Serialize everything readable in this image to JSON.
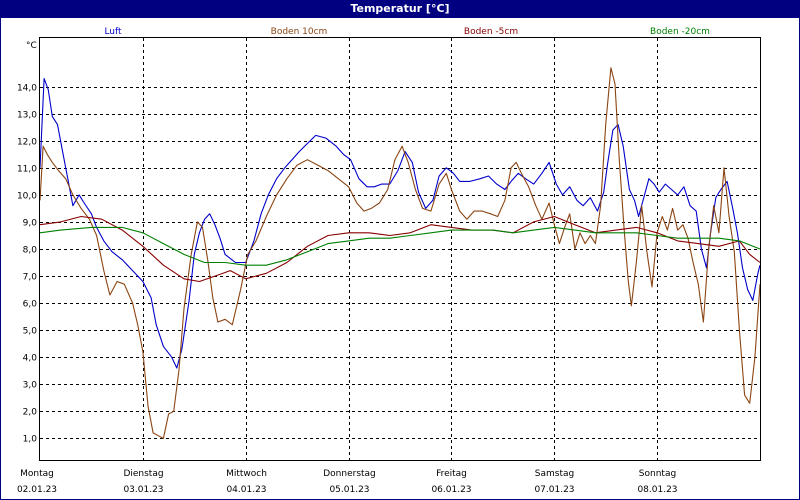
{
  "window": {
    "title": "Temperatur [°C]"
  },
  "chart_data": {
    "type": "line",
    "title": "Temperatur [°C]",
    "ylabel": "°C",
    "xlabel": "",
    "ylim": [
      0.2,
      15.8
    ],
    "xlim": [
      0,
      7
    ],
    "grid": true,
    "legend_position": "top",
    "y_ticks": [
      {
        "value": 1,
        "label": "1,0"
      },
      {
        "value": 2,
        "label": "2,0"
      },
      {
        "value": 3,
        "label": "3,0"
      },
      {
        "value": 4,
        "label": "4,0"
      },
      {
        "value": 5,
        "label": "5,0"
      },
      {
        "value": 6,
        "label": "6,0"
      },
      {
        "value": 7,
        "label": "7,0"
      },
      {
        "value": 8,
        "label": "8,0"
      },
      {
        "value": 9,
        "label": "9,0"
      },
      {
        "value": 10,
        "label": "10,0"
      },
      {
        "value": 11,
        "label": "11,0"
      },
      {
        "value": 12,
        "label": "12,0"
      },
      {
        "value": 13,
        "label": "13,0"
      },
      {
        "value": 14,
        "label": "14,0"
      }
    ],
    "x_ticks": [
      {
        "value": 0,
        "day": "Montag",
        "date": "02.01.23"
      },
      {
        "value": 1,
        "day": "Dienstag",
        "date": "03.01.23"
      },
      {
        "value": 2,
        "day": "Mittwoch",
        "date": "04.01.23"
      },
      {
        "value": 3,
        "day": "Donnerstag",
        "date": "05.01.23"
      },
      {
        "value": 4,
        "day": "Freitag",
        "date": "06.01.23"
      },
      {
        "value": 5,
        "day": "Samstag",
        "date": "07.01.23"
      },
      {
        "value": 6,
        "day": "Sonntag",
        "date": "08.01.23"
      }
    ],
    "series": [
      {
        "name": "Luft",
        "color": "#0000cc",
        "points": [
          [
            0.0,
            11.0
          ],
          [
            0.04,
            14.3
          ],
          [
            0.08,
            13.9
          ],
          [
            0.12,
            12.9
          ],
          [
            0.17,
            12.6
          ],
          [
            0.22,
            11.6
          ],
          [
            0.27,
            10.6
          ],
          [
            0.32,
            9.6
          ],
          [
            0.38,
            10.0
          ],
          [
            0.43,
            9.7
          ],
          [
            0.5,
            9.3
          ],
          [
            0.55,
            8.8
          ],
          [
            0.62,
            8.3
          ],
          [
            0.7,
            7.9
          ],
          [
            0.8,
            7.6
          ],
          [
            0.9,
            7.2
          ],
          [
            1.0,
            6.8
          ],
          [
            1.08,
            6.2
          ],
          [
            1.13,
            5.2
          ],
          [
            1.2,
            4.4
          ],
          [
            1.28,
            4.0
          ],
          [
            1.33,
            3.6
          ],
          [
            1.38,
            4.3
          ],
          [
            1.45,
            6.1
          ],
          [
            1.5,
            7.8
          ],
          [
            1.55,
            8.6
          ],
          [
            1.6,
            9.1
          ],
          [
            1.65,
            9.3
          ],
          [
            1.7,
            8.9
          ],
          [
            1.75,
            8.4
          ],
          [
            1.8,
            7.8
          ],
          [
            1.9,
            7.5
          ],
          [
            2.0,
            7.5
          ],
          [
            2.08,
            8.3
          ],
          [
            2.15,
            9.3
          ],
          [
            2.22,
            10.0
          ],
          [
            2.3,
            10.6
          ],
          [
            2.38,
            11.0
          ],
          [
            2.45,
            11.3
          ],
          [
            2.52,
            11.6
          ],
          [
            2.6,
            11.9
          ],
          [
            2.68,
            12.2
          ],
          [
            2.78,
            12.1
          ],
          [
            2.88,
            11.8
          ],
          [
            2.95,
            11.5
          ],
          [
            3.02,
            11.3
          ],
          [
            3.1,
            10.6
          ],
          [
            3.18,
            10.3
          ],
          [
            3.25,
            10.3
          ],
          [
            3.32,
            10.4
          ],
          [
            3.4,
            10.4
          ],
          [
            3.48,
            10.9
          ],
          [
            3.55,
            11.6
          ],
          [
            3.62,
            11.2
          ],
          [
            3.68,
            10.1
          ],
          [
            3.75,
            9.5
          ],
          [
            3.82,
            9.8
          ],
          [
            3.88,
            10.7
          ],
          [
            3.95,
            11.0
          ],
          [
            4.02,
            10.8
          ],
          [
            4.08,
            10.5
          ],
          [
            4.18,
            10.5
          ],
          [
            4.28,
            10.6
          ],
          [
            4.36,
            10.7
          ],
          [
            4.44,
            10.4
          ],
          [
            4.52,
            10.2
          ],
          [
            4.58,
            10.5
          ],
          [
            4.65,
            10.8
          ],
          [
            4.72,
            10.6
          ],
          [
            4.8,
            10.4
          ],
          [
            4.88,
            10.8
          ],
          [
            4.95,
            11.2
          ],
          [
            5.02,
            10.4
          ],
          [
            5.08,
            10.0
          ],
          [
            5.15,
            10.3
          ],
          [
            5.22,
            9.8
          ],
          [
            5.28,
            9.6
          ],
          [
            5.35,
            9.9
          ],
          [
            5.42,
            9.4
          ],
          [
            5.48,
            10.1
          ],
          [
            5.52,
            11.2
          ],
          [
            5.57,
            12.4
          ],
          [
            5.62,
            12.6
          ],
          [
            5.67,
            11.8
          ],
          [
            5.73,
            10.2
          ],
          [
            5.78,
            9.8
          ],
          [
            5.82,
            9.2
          ],
          [
            5.87,
            9.9
          ],
          [
            5.92,
            10.6
          ],
          [
            5.97,
            10.4
          ],
          [
            6.02,
            10.1
          ],
          [
            6.08,
            10.4
          ],
          [
            6.14,
            10.2
          ],
          [
            6.2,
            10.0
          ],
          [
            6.26,
            10.3
          ],
          [
            6.32,
            9.6
          ],
          [
            6.38,
            9.4
          ],
          [
            6.43,
            8.0
          ],
          [
            6.48,
            7.3
          ],
          [
            6.52,
            8.6
          ],
          [
            6.57,
            9.9
          ],
          [
            6.62,
            10.2
          ],
          [
            6.68,
            10.5
          ],
          [
            6.73,
            9.6
          ],
          [
            6.78,
            8.6
          ],
          [
            6.83,
            7.3
          ],
          [
            6.88,
            6.5
          ],
          [
            6.93,
            6.1
          ],
          [
            6.98,
            7.1
          ],
          [
            7.0,
            7.4
          ]
        ]
      },
      {
        "name": "Boden 10cm",
        "color": "#8b4513",
        "points": [
          [
            0.0,
            9.8
          ],
          [
            0.03,
            11.8
          ],
          [
            0.07,
            11.5
          ],
          [
            0.12,
            11.2
          ],
          [
            0.18,
            10.9
          ],
          [
            0.25,
            10.6
          ],
          [
            0.32,
            10.0
          ],
          [
            0.4,
            9.5
          ],
          [
            0.48,
            9.1
          ],
          [
            0.55,
            8.5
          ],
          [
            0.62,
            7.2
          ],
          [
            0.68,
            6.3
          ],
          [
            0.75,
            6.8
          ],
          [
            0.82,
            6.7
          ],
          [
            0.9,
            6.0
          ],
          [
            0.95,
            5.2
          ],
          [
            1.0,
            4.2
          ],
          [
            1.05,
            2.2
          ],
          [
            1.1,
            1.2
          ],
          [
            1.15,
            1.1
          ],
          [
            1.2,
            1.0
          ],
          [
            1.25,
            1.9
          ],
          [
            1.3,
            2.0
          ],
          [
            1.35,
            3.5
          ],
          [
            1.4,
            5.8
          ],
          [
            1.47,
            7.8
          ],
          [
            1.53,
            9.0
          ],
          [
            1.58,
            8.8
          ],
          [
            1.63,
            7.6
          ],
          [
            1.68,
            6.2
          ],
          [
            1.73,
            5.3
          ],
          [
            1.8,
            5.4
          ],
          [
            1.87,
            5.2
          ],
          [
            1.95,
            6.5
          ],
          [
            2.02,
            7.8
          ],
          [
            2.1,
            8.3
          ],
          [
            2.2,
            9.2
          ],
          [
            2.3,
            10.0
          ],
          [
            2.4,
            10.6
          ],
          [
            2.5,
            11.1
          ],
          [
            2.6,
            11.3
          ],
          [
            2.7,
            11.1
          ],
          [
            2.8,
            10.9
          ],
          [
            2.9,
            10.6
          ],
          [
            3.0,
            10.3
          ],
          [
            3.08,
            9.7
          ],
          [
            3.15,
            9.4
          ],
          [
            3.22,
            9.5
          ],
          [
            3.3,
            9.7
          ],
          [
            3.38,
            10.2
          ],
          [
            3.45,
            11.3
          ],
          [
            3.52,
            11.8
          ],
          [
            3.58,
            11.2
          ],
          [
            3.65,
            10.2
          ],
          [
            3.72,
            9.5
          ],
          [
            3.8,
            9.4
          ],
          [
            3.88,
            10.4
          ],
          [
            3.95,
            10.8
          ],
          [
            4.0,
            10.2
          ],
          [
            4.08,
            9.4
          ],
          [
            4.15,
            9.1
          ],
          [
            4.22,
            9.4
          ],
          [
            4.3,
            9.4
          ],
          [
            4.38,
            9.3
          ],
          [
            4.45,
            9.2
          ],
          [
            4.52,
            9.8
          ],
          [
            4.58,
            11.0
          ],
          [
            4.63,
            11.2
          ],
          [
            4.68,
            10.8
          ],
          [
            4.75,
            10.3
          ],
          [
            4.82,
            9.6
          ],
          [
            4.88,
            9.1
          ],
          [
            4.95,
            9.7
          ],
          [
            5.0,
            8.9
          ],
          [
            5.05,
            8.2
          ],
          [
            5.1,
            8.8
          ],
          [
            5.15,
            9.3
          ],
          [
            5.2,
            8.0
          ],
          [
            5.25,
            8.6
          ],
          [
            5.3,
            8.2
          ],
          [
            5.35,
            8.5
          ],
          [
            5.4,
            8.2
          ],
          [
            5.45,
            9.6
          ],
          [
            5.5,
            12.6
          ],
          [
            5.55,
            14.7
          ],
          [
            5.59,
            14.1
          ],
          [
            5.63,
            11.4
          ],
          [
            5.68,
            8.7
          ],
          [
            5.72,
            6.8
          ],
          [
            5.75,
            5.9
          ],
          [
            5.8,
            7.6
          ],
          [
            5.85,
            9.6
          ],
          [
            5.9,
            7.9
          ],
          [
            5.95,
            6.6
          ],
          [
            6.0,
            8.6
          ],
          [
            6.05,
            9.2
          ],
          [
            6.1,
            8.7
          ],
          [
            6.15,
            9.5
          ],
          [
            6.2,
            8.7
          ],
          [
            6.25,
            8.9
          ],
          [
            6.3,
            8.4
          ],
          [
            6.35,
            7.5
          ],
          [
            6.4,
            6.7
          ],
          [
            6.45,
            5.3
          ],
          [
            6.5,
            8.0
          ],
          [
            6.55,
            9.6
          ],
          [
            6.6,
            8.6
          ],
          [
            6.65,
            11.0
          ],
          [
            6.7,
            9.2
          ],
          [
            6.75,
            7.9
          ],
          [
            6.8,
            5.0
          ],
          [
            6.85,
            2.6
          ],
          [
            6.9,
            2.3
          ],
          [
            6.95,
            4.0
          ],
          [
            7.0,
            6.7
          ]
        ]
      },
      {
        "name": "Boden -5cm",
        "color": "#880000",
        "points": [
          [
            0.0,
            8.9
          ],
          [
            0.2,
            9.0
          ],
          [
            0.4,
            9.2
          ],
          [
            0.6,
            9.1
          ],
          [
            0.8,
            8.7
          ],
          [
            1.0,
            8.1
          ],
          [
            1.2,
            7.4
          ],
          [
            1.4,
            6.9
          ],
          [
            1.55,
            6.8
          ],
          [
            1.7,
            7.0
          ],
          [
            1.85,
            7.2
          ],
          [
            2.0,
            6.9
          ],
          [
            2.2,
            7.1
          ],
          [
            2.4,
            7.5
          ],
          [
            2.6,
            8.1
          ],
          [
            2.8,
            8.5
          ],
          [
            3.0,
            8.6
          ],
          [
            3.2,
            8.6
          ],
          [
            3.4,
            8.5
          ],
          [
            3.6,
            8.6
          ],
          [
            3.8,
            8.9
          ],
          [
            4.0,
            8.8
          ],
          [
            4.2,
            8.7
          ],
          [
            4.4,
            8.7
          ],
          [
            4.6,
            8.6
          ],
          [
            4.8,
            9.0
          ],
          [
            5.0,
            9.2
          ],
          [
            5.2,
            8.9
          ],
          [
            5.4,
            8.6
          ],
          [
            5.6,
            8.7
          ],
          [
            5.8,
            8.8
          ],
          [
            6.0,
            8.6
          ],
          [
            6.2,
            8.3
          ],
          [
            6.4,
            8.2
          ],
          [
            6.6,
            8.1
          ],
          [
            6.8,
            8.3
          ],
          [
            6.9,
            7.8
          ],
          [
            7.0,
            7.5
          ]
        ]
      },
      {
        "name": "Boden -20cm",
        "color": "#008000",
        "points": [
          [
            0.0,
            8.6
          ],
          [
            0.2,
            8.7
          ],
          [
            0.5,
            8.8
          ],
          [
            0.8,
            8.8
          ],
          [
            1.0,
            8.6
          ],
          [
            1.2,
            8.2
          ],
          [
            1.4,
            7.8
          ],
          [
            1.6,
            7.5
          ],
          [
            1.8,
            7.5
          ],
          [
            2.0,
            7.4
          ],
          [
            2.2,
            7.4
          ],
          [
            2.4,
            7.6
          ],
          [
            2.6,
            7.9
          ],
          [
            2.8,
            8.2
          ],
          [
            3.0,
            8.3
          ],
          [
            3.2,
            8.4
          ],
          [
            3.4,
            8.4
          ],
          [
            3.6,
            8.5
          ],
          [
            3.8,
            8.6
          ],
          [
            4.0,
            8.7
          ],
          [
            4.2,
            8.7
          ],
          [
            4.4,
            8.7
          ],
          [
            4.6,
            8.6
          ],
          [
            4.8,
            8.7
          ],
          [
            5.0,
            8.8
          ],
          [
            5.2,
            8.7
          ],
          [
            5.4,
            8.6
          ],
          [
            5.6,
            8.6
          ],
          [
            5.8,
            8.6
          ],
          [
            6.0,
            8.5
          ],
          [
            6.2,
            8.4
          ],
          [
            6.4,
            8.4
          ],
          [
            6.6,
            8.4
          ],
          [
            6.8,
            8.3
          ],
          [
            7.0,
            8.0
          ]
        ]
      }
    ]
  }
}
